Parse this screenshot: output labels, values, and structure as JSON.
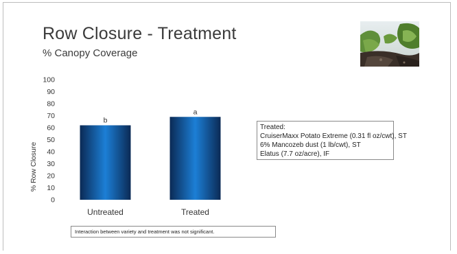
{
  "slide": {
    "title": "Row Closure - Treatment",
    "subtitle": "% Canopy Coverage"
  },
  "legend": {
    "lines": [
      "Treated:",
      "CruiserMaxx Potato Extreme (0.31 fl oz/cwt), ST",
      "6% Mancozeb dust (1 lb/cwt), ST",
      "Elatus (7.7 oz/acre), IF"
    ]
  },
  "note": {
    "text": "Interaction between variety and treatment was not significant."
  },
  "colors": {
    "bar_dark": "#0b2a55",
    "bar_light": "#1c7fd6",
    "axis_text": "#333333"
  },
  "chart_data": {
    "type": "bar",
    "categories": [
      "Untreated",
      "Treated"
    ],
    "values": [
      62,
      69
    ],
    "data_labels": [
      "b",
      "a"
    ],
    "title": "",
    "xlabel": "",
    "ylabel": "% Row Closure",
    "ylim": [
      0,
      100
    ],
    "yticks": [
      0,
      10,
      20,
      30,
      40,
      50,
      60,
      70,
      80,
      90,
      100
    ],
    "grid": false,
    "legend": "none"
  }
}
